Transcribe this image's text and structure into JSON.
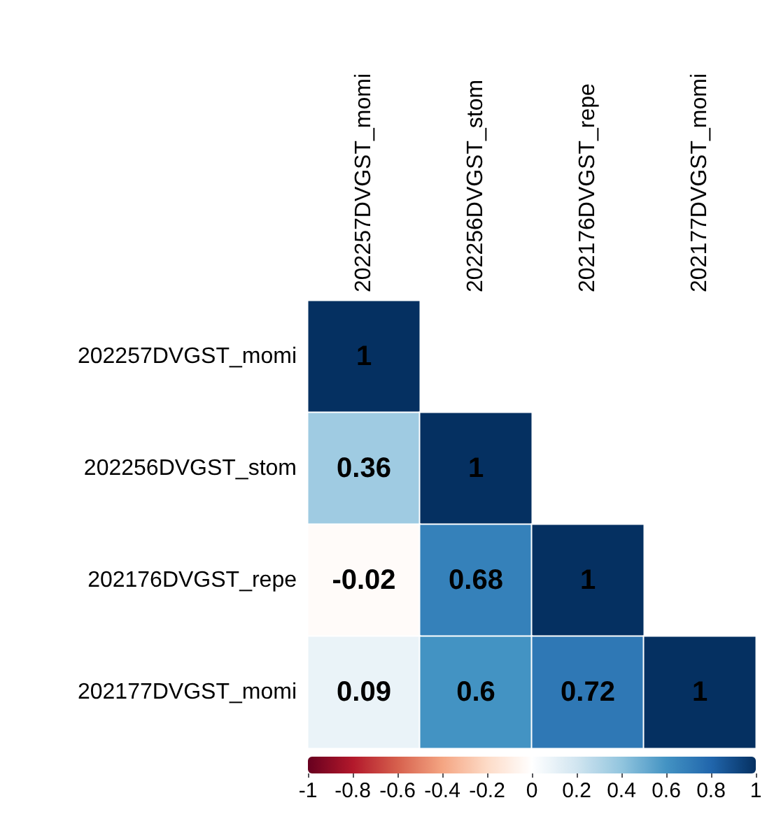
{
  "chart_data": {
    "type": "heatmap",
    "categories": [
      "202257DVGST_momi",
      "202256DVGST_stom",
      "202176DVGST_repe",
      "202177DVGST_momi"
    ],
    "y_categories": [
      "202257DVGST_momi",
      "202256DVGST_stom",
      "202176DVGST_repe",
      "202177DVGST_momi"
    ],
    "cells": [
      [
        1,
        null,
        null,
        null
      ],
      [
        0.36,
        1,
        null,
        null
      ],
      [
        -0.02,
        0.68,
        1,
        null
      ],
      [
        0.09,
        0.6,
        0.72,
        1
      ]
    ],
    "data_labels": true,
    "clim": [
      -1,
      1
    ],
    "cticks": [
      -1,
      -0.8,
      -0.6,
      -0.4,
      -0.2,
      0,
      0.2,
      0.4,
      0.6,
      0.8,
      1
    ]
  }
}
